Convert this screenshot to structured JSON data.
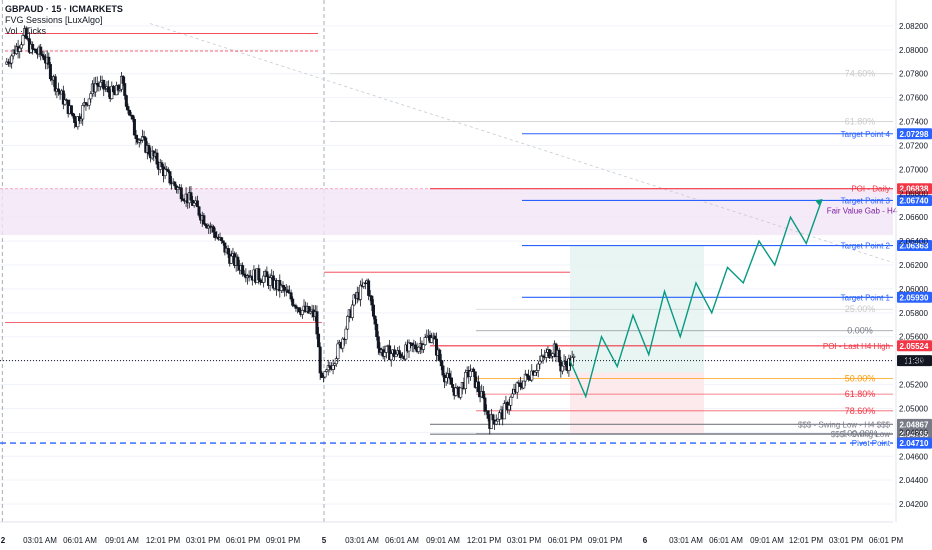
{
  "header": {
    "title": "GBPAUD · 15 · ICMARKETS",
    "indicator": "FVG Sessions [LuxAlgo]",
    "volume_label": "Vol · Ticks"
  },
  "colors": {
    "bull": "#131722",
    "bear": "#131722",
    "blue": "#2962ff",
    "red": "#f23645",
    "pink_zone": "#f3e5f5",
    "pink_text": "#e91e63",
    "orange": "#ff9800",
    "teal": "#089981",
    "grid": "#f0f3fa"
  },
  "chart_data": {
    "type": "candlestick",
    "symbol": "GBPAUD",
    "timeframe": "15",
    "exchange": "ICMARKETS",
    "ylim": [
      2.0405,
      2.0835
    ],
    "y_ticks": [
      "2.08200",
      "2.08000",
      "2.07800",
      "2.07600",
      "2.07400",
      "2.07200",
      "2.07000",
      "2.06800",
      "2.06600",
      "2.06400",
      "2.06200",
      "2.06000",
      "2.05800",
      "2.05600",
      "2.05400",
      "2.05200",
      "2.05000",
      "2.04800",
      "2.04600",
      "2.04400",
      "2.04200"
    ],
    "x_ticks": [
      "2",
      "03:01 AM",
      "06:01 AM",
      "09:01 AM",
      "12:01 PM",
      "03:01 PM",
      "06:01 PM",
      "09:01 PM",
      "5",
      "03:01 AM",
      "06:01 AM",
      "09:01 AM",
      "12:01 PM",
      "03:01 PM",
      "06:01 PM",
      "09:01 PM",
      "6",
      "03:01 AM",
      "06:01 AM",
      "09:01 AM",
      "12:01 PM",
      "03:01 PM",
      "06:01 PM"
    ],
    "price_path": [
      [
        0,
        2.0788
      ],
      [
        3,
        2.0812
      ],
      [
        4,
        2.08
      ],
      [
        6,
        2.0795
      ],
      [
        8,
        2.0768
      ],
      [
        11,
        2.074
      ],
      [
        14,
        2.0772
      ],
      [
        17,
        2.0762
      ],
      [
        18,
        2.0773
      ],
      [
        20,
        2.0732
      ],
      [
        23,
        2.071
      ],
      [
        26,
        2.0688
      ],
      [
        29,
        2.0672
      ],
      [
        32,
        2.065
      ],
      [
        35,
        2.0625
      ],
      [
        38,
        2.0612
      ],
      [
        40,
        2.061
      ],
      [
        43,
        2.0599
      ],
      [
        46,
        2.0582
      ],
      [
        48,
        2.0578
      ],
      [
        49,
        2.052
      ],
      [
        52,
        2.0555
      ],
      [
        54,
        2.059
      ],
      [
        56,
        2.0606
      ],
      [
        58,
        2.0548
      ],
      [
        61,
        2.0545
      ],
      [
        64,
        2.0553
      ],
      [
        66,
        2.0562
      ],
      [
        68,
        2.0528
      ],
      [
        70,
        2.0512
      ],
      [
        72,
        2.0532
      ],
      [
        74,
        2.0506
      ],
      [
        75,
        2.0489
      ],
      [
        77,
        2.0496
      ],
      [
        79,
        2.0515
      ],
      [
        81,
        2.0528
      ],
      [
        83,
        2.054
      ],
      [
        85,
        2.0552
      ],
      [
        86,
        2.0535
      ],
      [
        88,
        2.054
      ]
    ],
    "levels": [
      {
        "label": "Target Point 4",
        "price": 2.07298,
        "tag": "2.07298",
        "color": "#2962ff"
      },
      {
        "label": "POI - Daily",
        "price": 2.06838,
        "tag": "2.06838",
        "color": "#f23645"
      },
      {
        "label": "Target Point 3",
        "price": 2.0674,
        "tag": "2.06740",
        "color": "#2962ff"
      },
      {
        "label": "Target Point 2",
        "price": 2.06363,
        "tag": "2.06363",
        "color": "#2962ff"
      },
      {
        "label": "Target Point 1",
        "price": 2.0593,
        "tag": "2.05930",
        "color": "#2962ff"
      },
      {
        "label": "POI - Last H4 High",
        "price": 2.05524,
        "tag": "2.05524",
        "color": "#f23645"
      },
      {
        "label": "$$$ - Swing Low - H4 $$$",
        "price": 2.04867,
        "tag": "2.04867",
        "color": "#787b86"
      },
      {
        "label": "$$$ - Swing Low",
        "price": 2.04785,
        "tag": "2.04785",
        "color": "#787b86"
      },
      {
        "label": "Pivot Point",
        "price": 2.0471,
        "tag": "2.04710",
        "color": "#2962ff"
      }
    ],
    "fib_levels": [
      {
        "label": "74.60%",
        "price": 2.078,
        "color": "#c9c9c9"
      },
      {
        "label": "61.80%",
        "price": 2.074,
        "color": "#c9c9c9"
      },
      {
        "label": "25.00%",
        "price": 2.0583,
        "color": "#c9c9c9"
      },
      {
        "label": "0.00%",
        "price": 2.0565,
        "color": "#787b86"
      },
      {
        "label": "50.00%",
        "price": 2.0525,
        "color": "#ff9800"
      },
      {
        "label": "61.80%",
        "price": 2.0512,
        "color": "#f23645"
      },
      {
        "label": "78.60%",
        "price": 2.0498,
        "color": "#f23645"
      },
      {
        "label": "100.00%",
        "price": 2.0479,
        "color": "#787b86"
      }
    ],
    "fvg_label": "Fair Value Gab - H4",
    "current_price_tag": "11:39",
    "current_price": 2.054,
    "projection_path": [
      2.054,
      2.051,
      2.056,
      2.0535,
      2.0578,
      2.0545,
      2.0598,
      2.056,
      2.0605,
      2.058,
      2.0618,
      2.0605,
      2.064,
      2.062,
      2.066,
      2.0638,
      2.0675
    ],
    "long_position": {
      "entry": 2.053,
      "target": 2.0636,
      "stop": 2.0479
    }
  }
}
